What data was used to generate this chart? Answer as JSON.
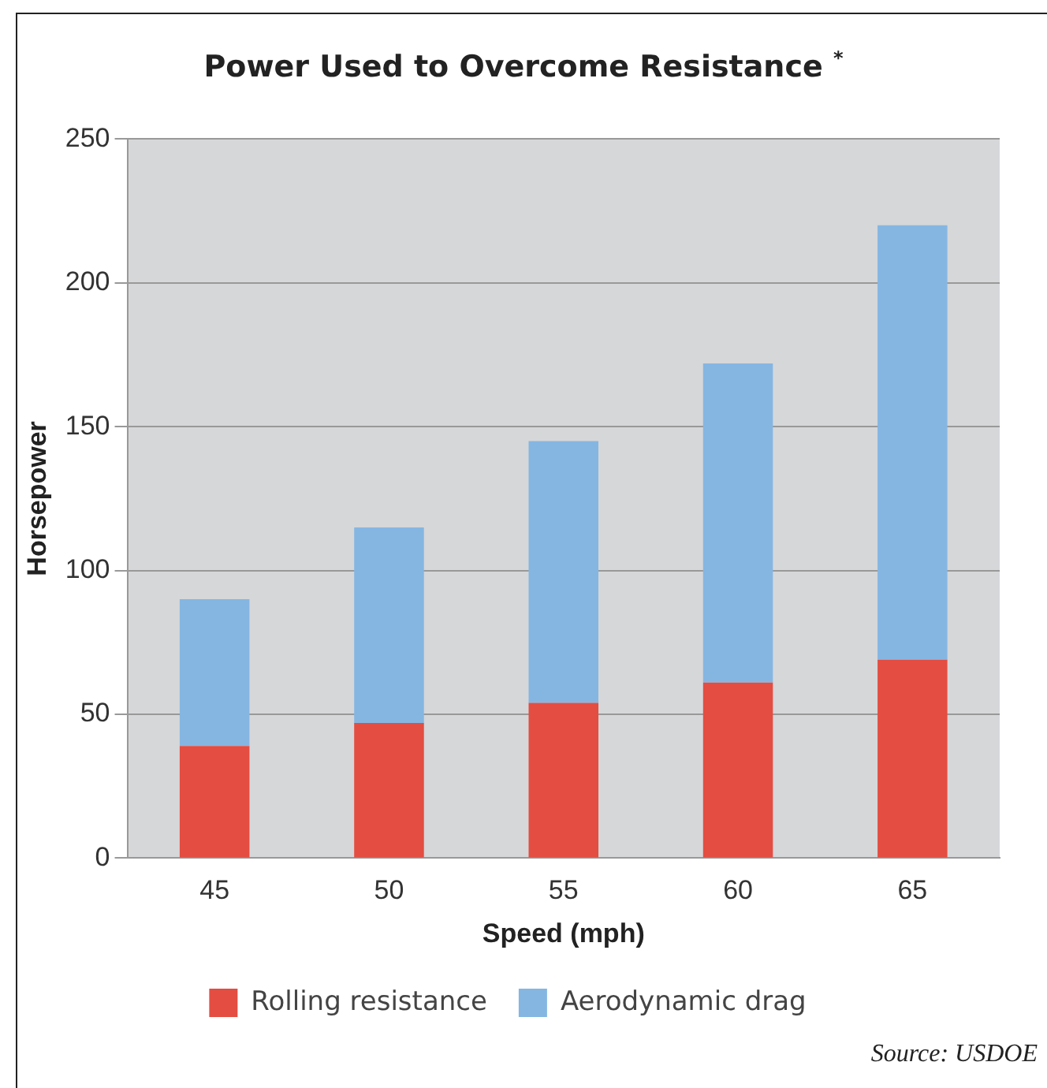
{
  "chart_data": {
    "type": "bar",
    "title": "Power Used to Overcome Resistance $^{*}$",
    "xlabel": "Speed (mph)",
    "ylabel": "Horsepower",
    "categories": [
      "45",
      "50",
      "55",
      "60",
      "65"
    ],
    "stacked": true,
    "series": [
      {
        "name": "Rolling resistance",
        "color": "#e44d41",
        "values": [
          39,
          47,
          54,
          61,
          69
        ]
      },
      {
        "name": "Aerodynamic drag",
        "color": "#85b6e2",
        "values": [
          51,
          68,
          91,
          111,
          151
        ]
      }
    ],
    "ylim": [
      0,
      250
    ],
    "yticks": [
      0,
      50,
      100,
      150,
      200,
      250
    ],
    "grid": "y",
    "legend": "bottom",
    "annotations": [
      "Source: USDOE"
    ]
  }
}
